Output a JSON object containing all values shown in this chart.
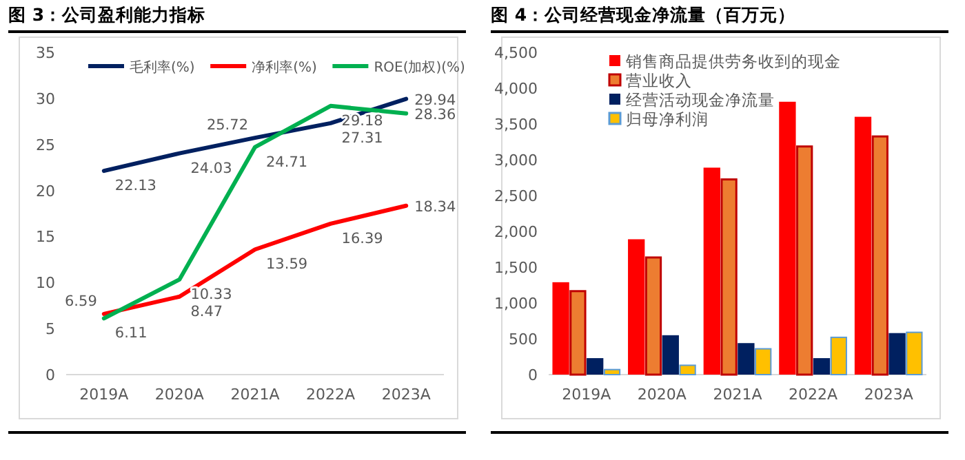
{
  "chart_data": [
    {
      "type": "line",
      "title": "图 3：公司盈利能力指标",
      "categories": [
        "2019A",
        "2020A",
        "2021A",
        "2022A",
        "2023A"
      ],
      "series": [
        {
          "name": "毛利率(%)",
          "color": "#002060",
          "values": [
            22.13,
            24.03,
            25.72,
            27.31,
            29.94
          ]
        },
        {
          "name": "净利率(%)",
          "color": "#ff0000",
          "values": [
            6.59,
            8.47,
            13.59,
            16.39,
            18.34
          ]
        },
        {
          "name": "ROE(加权)(%)",
          "color": "#00b050",
          "values": [
            6.11,
            10.33,
            24.71,
            29.18,
            28.36
          ]
        }
      ],
      "ylim": [
        0,
        35
      ],
      "yticks": [
        0,
        5,
        10,
        15,
        20,
        25,
        30,
        35
      ],
      "data_labels": true,
      "legend": "top",
      "grid": false,
      "marker": "none",
      "line_style": "solid"
    },
    {
      "type": "bar",
      "title": "图 4：公司经营现金净流量（百万元）",
      "categories": [
        "2019A",
        "2020A",
        "2021A",
        "2022A",
        "2023A"
      ],
      "series": [
        {
          "name": "销售商品提供劳务收到的现金",
          "color": "#ff0000",
          "values": [
            1290,
            1890,
            2890,
            3810,
            3600
          ]
        },
        {
          "name": "营业收入",
          "color": "#ed7d31",
          "values": [
            1180,
            1650,
            2740,
            3200,
            3340
          ]
        },
        {
          "name": "经营活动现金净流量",
          "color": "#002060",
          "values": [
            230,
            550,
            440,
            230,
            580
          ]
        },
        {
          "name": "归母净利润",
          "color": "#ffc000",
          "values": [
            80,
            140,
            370,
            530,
            600
          ]
        }
      ],
      "ylim": [
        0,
        4500
      ],
      "yticks": [
        0,
        500,
        {
          "value": 1000,
          "label": "1,000"
        },
        {
          "value": 1500,
          "label": "1,500"
        },
        {
          "value": 2000,
          "label": "2,000"
        },
        {
          "value": 2500,
          "label": "2,500"
        },
        {
          "value": 3000,
          "label": "3,000"
        },
        {
          "value": 3500,
          "label": "3,500"
        },
        {
          "value": 4000,
          "label": "4,000"
        },
        {
          "value": 4500,
          "label": "4,500"
        }
      ],
      "legend": "top left",
      "grid": false
    }
  ]
}
